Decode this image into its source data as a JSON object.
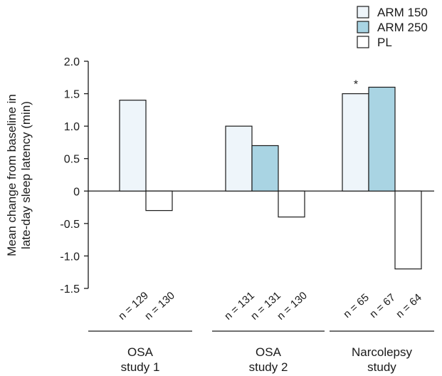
{
  "chart_data": {
    "type": "bar",
    "title": "",
    "xlabel": "",
    "ylabel": [
      "Mean change from baseline in",
      "late-day sleep latency (min)"
    ],
    "ylim": [
      -1.5,
      2.0
    ],
    "yticks": [
      "2.0",
      "1.5",
      "1.0",
      "0.5",
      "0",
      "-0.5",
      "-1.0",
      "-1.5"
    ],
    "ytick_values": [
      2.0,
      1.5,
      1.0,
      0.5,
      0,
      -0.5,
      -1.0,
      -1.5
    ],
    "grid": false,
    "legend_position": "top-right",
    "series": [
      {
        "name": "ARM 150",
        "color": "#eef5fa"
      },
      {
        "name": "ARM 250",
        "color": "#a9d4e3"
      },
      {
        "name": "PL",
        "color": "#ffffff"
      }
    ],
    "groups": [
      {
        "label": [
          "OSA",
          "study 1"
        ],
        "bars": [
          {
            "series": "ARM 150",
            "value": 1.4,
            "n": "n = 129",
            "star": ""
          },
          {
            "series": "PL",
            "value": -0.3,
            "n": "n = 130",
            "star": ""
          }
        ]
      },
      {
        "label": [
          "OSA",
          "study 2"
        ],
        "bars": [
          {
            "series": "ARM 150",
            "value": 1.0,
            "n": "n = 131",
            "star": ""
          },
          {
            "series": "ARM 250",
            "value": 0.7,
            "n": "n = 131",
            "star": ""
          },
          {
            "series": "PL",
            "value": -0.4,
            "n": "n = 130",
            "star": ""
          }
        ]
      },
      {
        "label": [
          "Narcolepsy",
          "study"
        ],
        "bars": [
          {
            "series": "ARM 150",
            "value": 1.5,
            "n": "n = 65",
            "star": "*"
          },
          {
            "series": "ARM 250",
            "value": 1.6,
            "n": "n = 67",
            "star": ""
          },
          {
            "series": "PL",
            "value": -1.2,
            "n": "n = 64",
            "star": ""
          }
        ]
      }
    ]
  }
}
